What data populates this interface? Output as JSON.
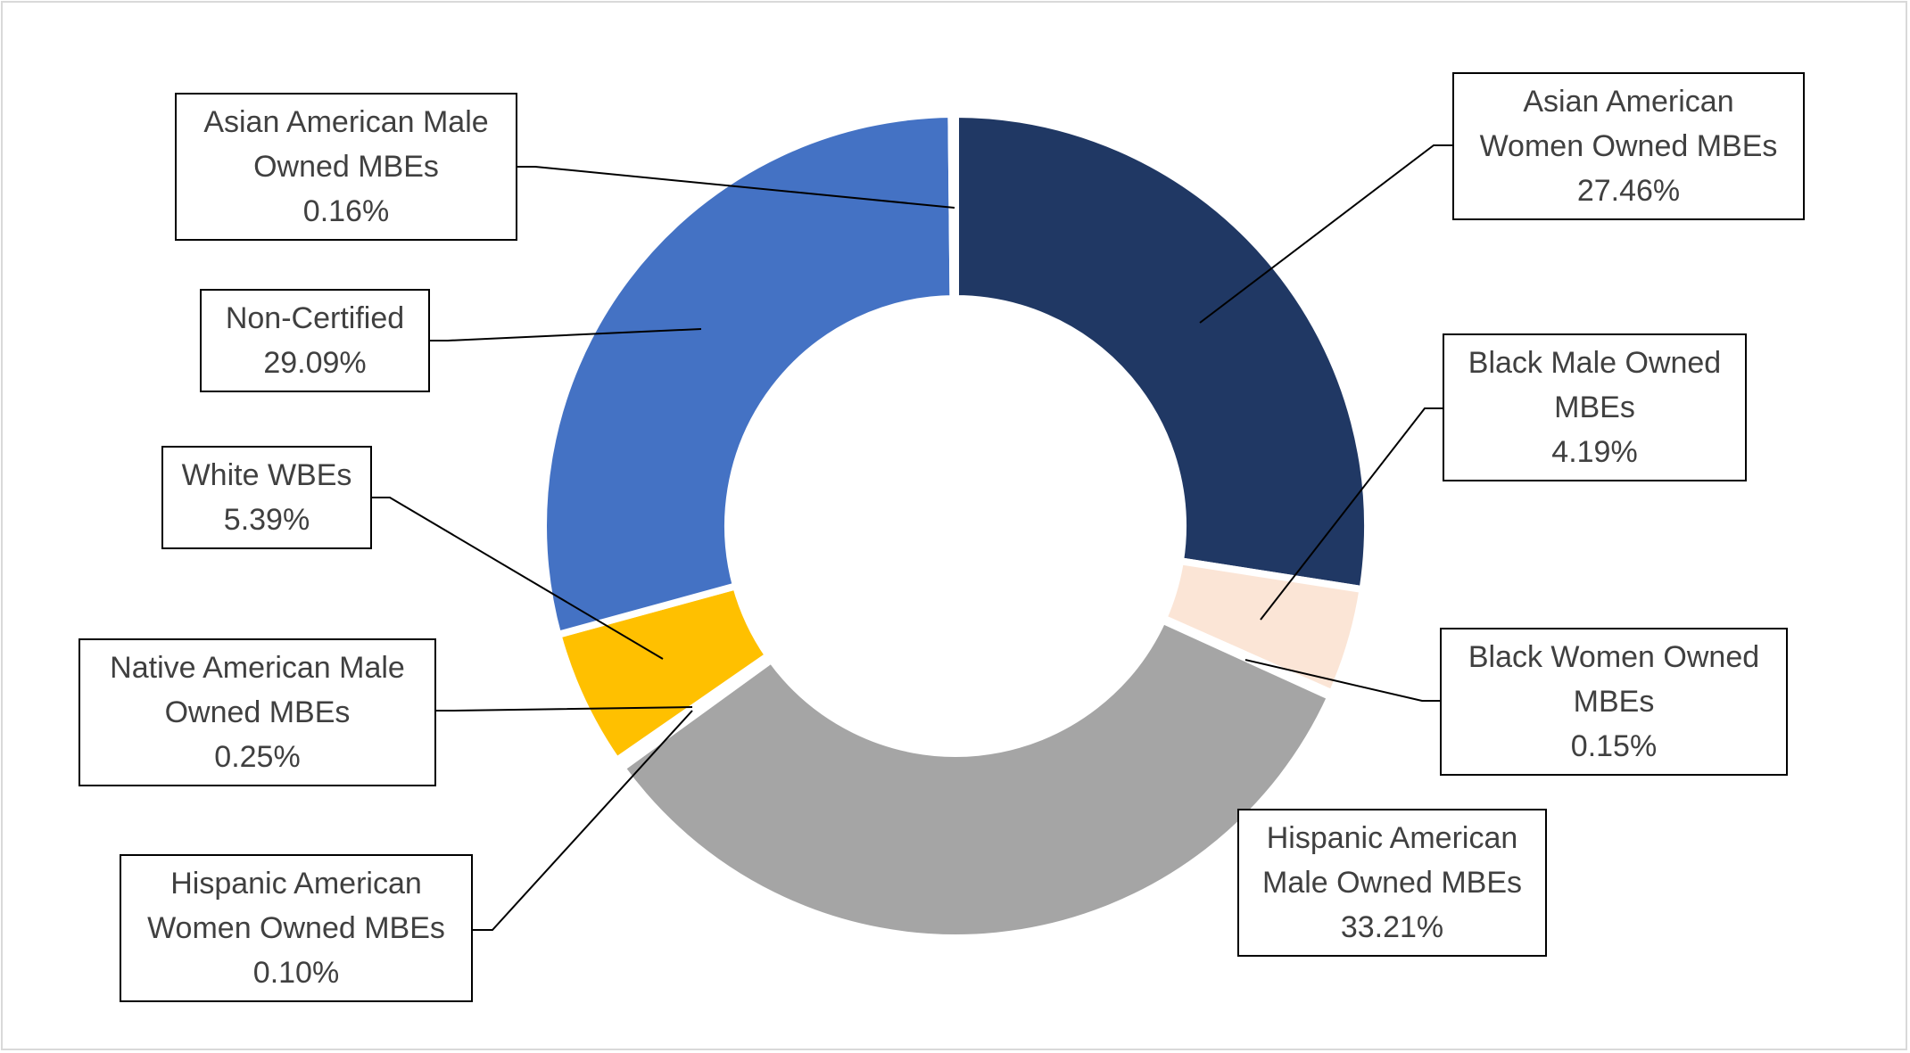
{
  "chart_data": {
    "type": "pie",
    "variant": "doughnut",
    "title": "",
    "slices": [
      {
        "label": "Asian American Women Owned MBEs",
        "value": 27.46,
        "display": "27.46%",
        "color": "#203864"
      },
      {
        "label": "Black Male Owned MBEs",
        "value": 4.19,
        "display": "4.19%",
        "color": "#FBE5D6"
      },
      {
        "label": "Black Women Owned MBEs",
        "value": 0.15,
        "display": "0.15%",
        "color": "#F4B183"
      },
      {
        "label": "Hispanic American Male Owned MBEs",
        "value": 33.21,
        "display": "33.21%",
        "color": "#A5A5A5"
      },
      {
        "label": "Hispanic American Women Owned MBEs",
        "value": 0.1,
        "display": "0.10%",
        "color": "#7F7F7F"
      },
      {
        "label": "Native American Male Owned MBEs",
        "value": 0.25,
        "display": "0.25%",
        "color": "#BF9000"
      },
      {
        "label": "White WBEs",
        "value": 5.39,
        "display": "5.39%",
        "color": "#FFC000"
      },
      {
        "label": "Non-Certified",
        "value": 29.09,
        "display": "29.09%",
        "color": "#4472C4"
      },
      {
        "label": "Asian American Male Owned MBEs",
        "value": 0.16,
        "display": "0.16%",
        "color": "#2F5597"
      }
    ],
    "labels": [
      {
        "line1": "Asian American",
        "line2": "Women Owned MBEs",
        "pct": "27.46%"
      },
      {
        "line1": "Black Male Owned",
        "line2": "MBEs",
        "pct": "4.19%"
      },
      {
        "line1": "Black Women Owned",
        "line2": "MBEs",
        "pct": "0.15%"
      },
      {
        "line1": "Hispanic American",
        "line2": "Male Owned MBEs",
        "pct": "33.21%"
      },
      {
        "line1": "Hispanic American",
        "line2": "Women Owned MBEs",
        "pct": "0.10%"
      },
      {
        "line1": "Native American Male",
        "line2": "Owned MBEs",
        "pct": "0.25%"
      },
      {
        "line1": "White WBEs",
        "line2": "",
        "pct": "5.39%"
      },
      {
        "line1": "Non-Certified",
        "line2": "",
        "pct": "29.09%"
      },
      {
        "line1": "Asian American Male",
        "line2": "Owned MBEs",
        "pct": "0.16%"
      }
    ],
    "legend": "none",
    "grid": false
  }
}
